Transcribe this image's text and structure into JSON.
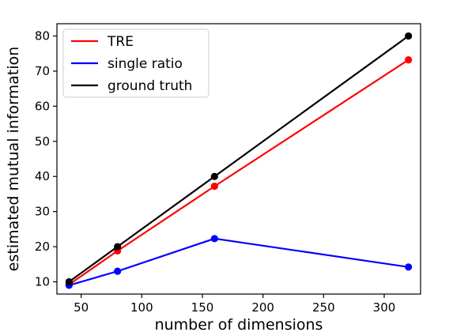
{
  "chart_data": {
    "type": "line",
    "title": "",
    "xlabel": "number of dimensions",
    "ylabel": "estimated mutual information",
    "xlim": [
      30,
      330
    ],
    "ylim": [
      6.5,
      83.5
    ],
    "xticks": [
      50,
      100,
      150,
      200,
      250,
      300
    ],
    "yticks": [
      10,
      20,
      30,
      40,
      50,
      60,
      70,
      80
    ],
    "grid": false,
    "legend_position": "top-left",
    "x": [
      40,
      80,
      160,
      320
    ],
    "series": [
      {
        "name": "TRE",
        "color": "#ff0000",
        "values": [
          9.2,
          18.8,
          37.2,
          73.2
        ]
      },
      {
        "name": "single ratio",
        "color": "#0000ff",
        "values": [
          9.0,
          13.0,
          22.3,
          14.2
        ]
      },
      {
        "name": "ground truth",
        "color": "#000000",
        "values": [
          10,
          20,
          40,
          80
        ]
      }
    ]
  }
}
